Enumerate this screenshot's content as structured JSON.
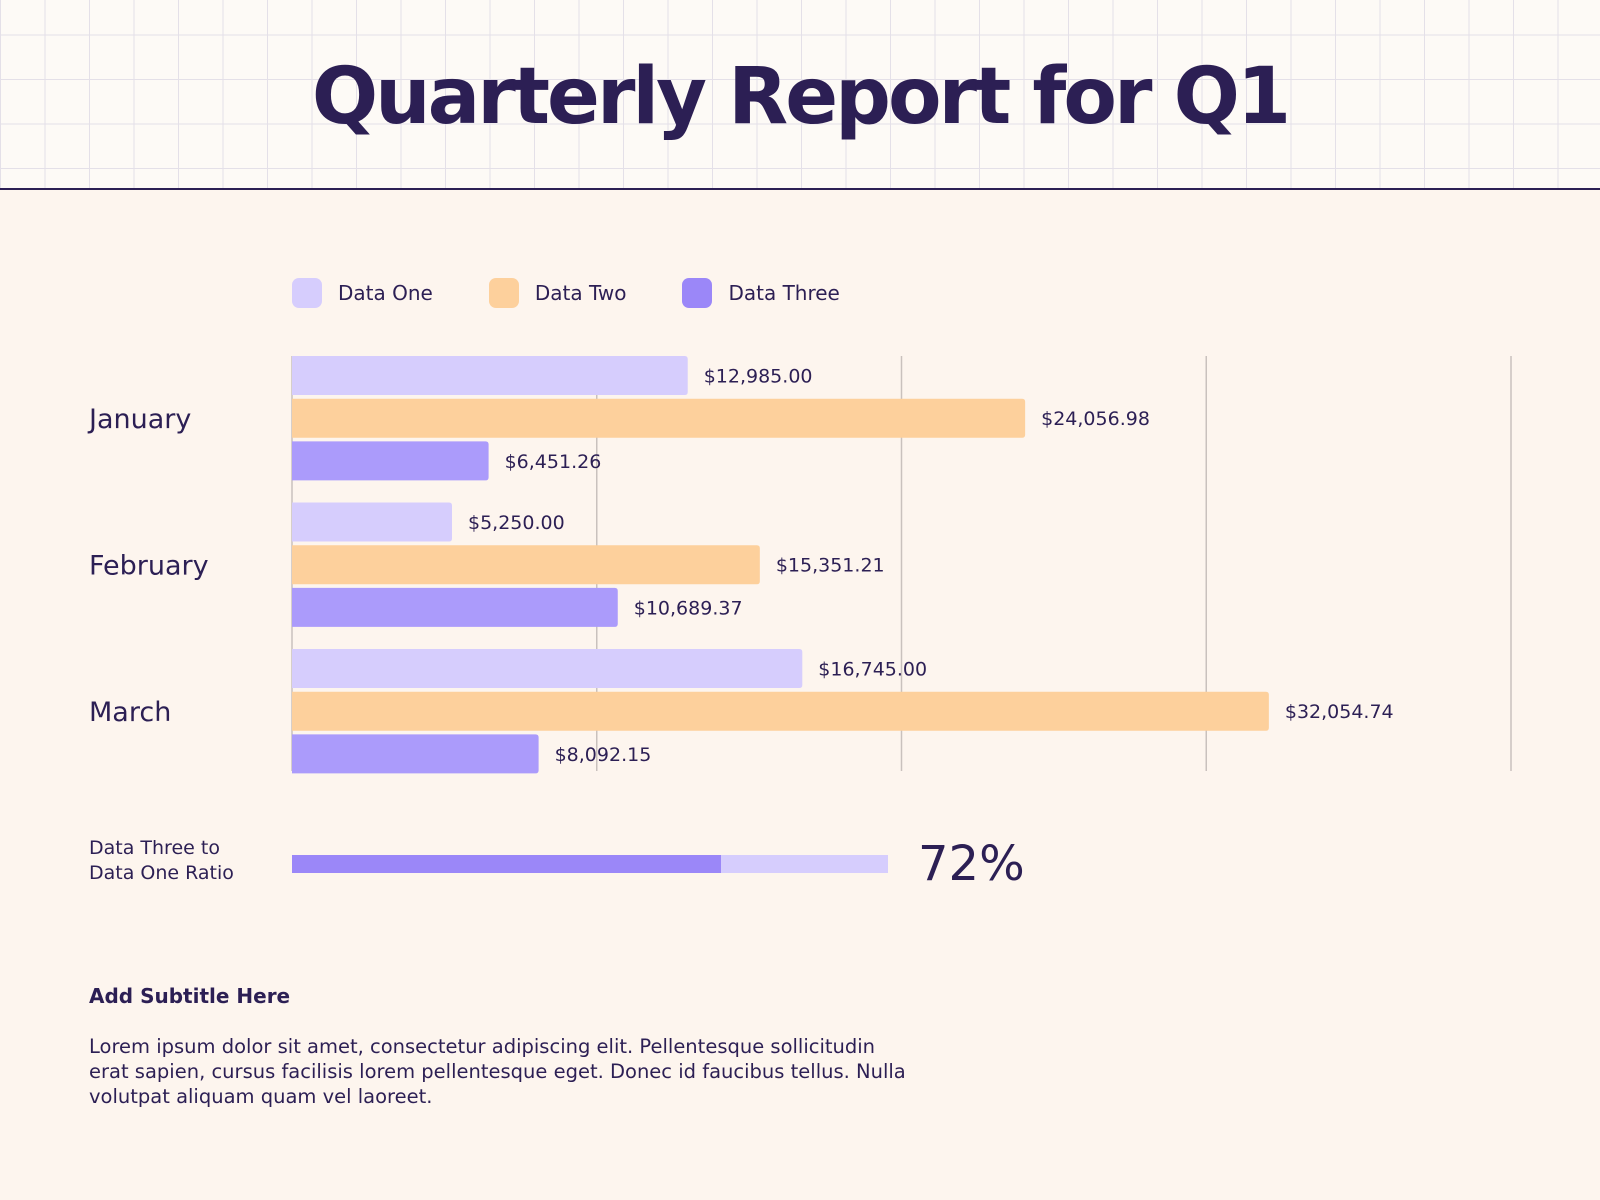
{
  "title": "Quarterly Report for Q1",
  "colors": {
    "data_one": "#d6cdfd",
    "data_two": "#fdd09c",
    "data_three": "#ab9bfb",
    "text": "#2c1f54",
    "grid": "#c9c1bd"
  },
  "legend": [
    {
      "label": "Data One",
      "color": "#d6cdfd"
    },
    {
      "label": "Data Two",
      "color": "#fdd09c"
    },
    {
      "label": "Data Three",
      "color": "#9b87f8"
    }
  ],
  "chart_data": {
    "type": "bar",
    "orientation": "horizontal",
    "categories": [
      "January",
      "February",
      "March"
    ],
    "series": [
      {
        "name": "Data One",
        "values": [
          12985.0,
          5250.0,
          16745.0
        ],
        "labels": [
          "$12,985.00",
          "$5,250.00",
          "$16,745.00"
        ]
      },
      {
        "name": "Data Two",
        "values": [
          24056.98,
          15351.21,
          32054.74
        ],
        "labels": [
          "$24,056.98",
          "$15,351.21",
          "$32,054.74"
        ]
      },
      {
        "name": "Data Three",
        "values": [
          6451.26,
          10689.37,
          8092.15
        ],
        "labels": [
          "$6,451.26",
          "$10,689.37",
          "$8,092.15"
        ]
      }
    ],
    "xlim": [
      0,
      40000
    ],
    "gridlines": [
      0,
      10000,
      20000,
      30000,
      40000
    ],
    "grid": true,
    "legend_position": "top-left"
  },
  "ratio": {
    "label_line1": "Data Three to",
    "label_line2": "Data One Ratio",
    "value": 0.72,
    "value_text": "72%"
  },
  "subtitle": "Add Subtitle Here",
  "body_text": "Lorem ipsum dolor sit amet, consectetur adipiscing elit. Pellentesque sollicitudin erat sapien, cursus facilisis lorem pellentesque eget. Donec id faucibus tellus. Nulla volutpat aliquam quam vel laoreet."
}
